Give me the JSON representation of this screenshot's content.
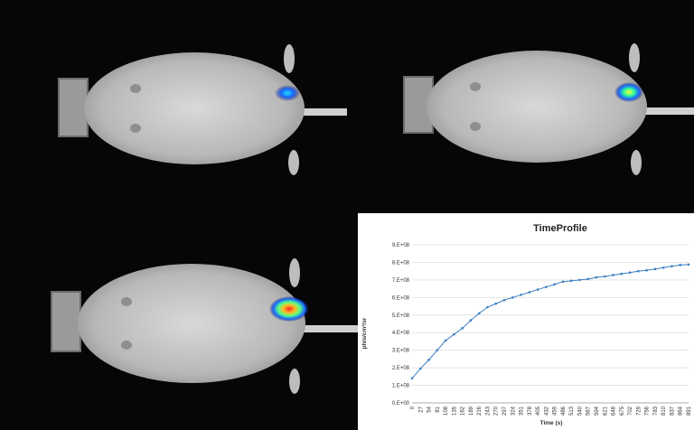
{
  "images": [
    {
      "name": "mouse-image-1",
      "description_color": "grayscale"
    },
    {
      "name": "mouse-image-2",
      "description_color": "grayscale"
    },
    {
      "name": "mouse-image-3",
      "description_color": "grayscale"
    }
  ],
  "chart_data": {
    "type": "line",
    "title": "TimeProfile",
    "xlabel": "Time (s)",
    "ylabel": "ph/s/cm²/sr",
    "ylim": [
      0,
      900000000
    ],
    "yticks": [
      "0.E+00",
      "1.E+08",
      "2.E+08",
      "3.E+08",
      "4.E+08",
      "5.E+08",
      "6.E+08",
      "7.E+08",
      "8.E+08",
      "9.E+08"
    ],
    "xticks": [
      "0",
      "27",
      "54",
      "81",
      "108",
      "135",
      "162",
      "189",
      "216",
      "243",
      "270",
      "297",
      "324",
      "351",
      "378",
      "405",
      "432",
      "459",
      "486",
      "513",
      "540",
      "567",
      "594",
      "621",
      "648",
      "675",
      "702",
      "729",
      "756",
      "783",
      "810",
      "837",
      "864",
      "891"
    ],
    "x": [
      0,
      27,
      54,
      81,
      108,
      135,
      162,
      189,
      216,
      243,
      270,
      297,
      324,
      351,
      378,
      405,
      432,
      459,
      486,
      513,
      540,
      567,
      594,
      621,
      648,
      675,
      702,
      729,
      756,
      783,
      810,
      837,
      864,
      891
    ],
    "values": [
      140000000,
      195000000,
      245000000,
      300000000,
      355000000,
      390000000,
      425000000,
      470000000,
      510000000,
      545000000,
      565000000,
      585000000,
      600000000,
      615000000,
      630000000,
      645000000,
      660000000,
      675000000,
      690000000,
      695000000,
      700000000,
      705000000,
      715000000,
      720000000,
      728000000,
      735000000,
      742000000,
      750000000,
      755000000,
      762000000,
      770000000,
      778000000,
      785000000,
      788000000
    ],
    "series_color": "#3a7fc4",
    "grid": true
  }
}
